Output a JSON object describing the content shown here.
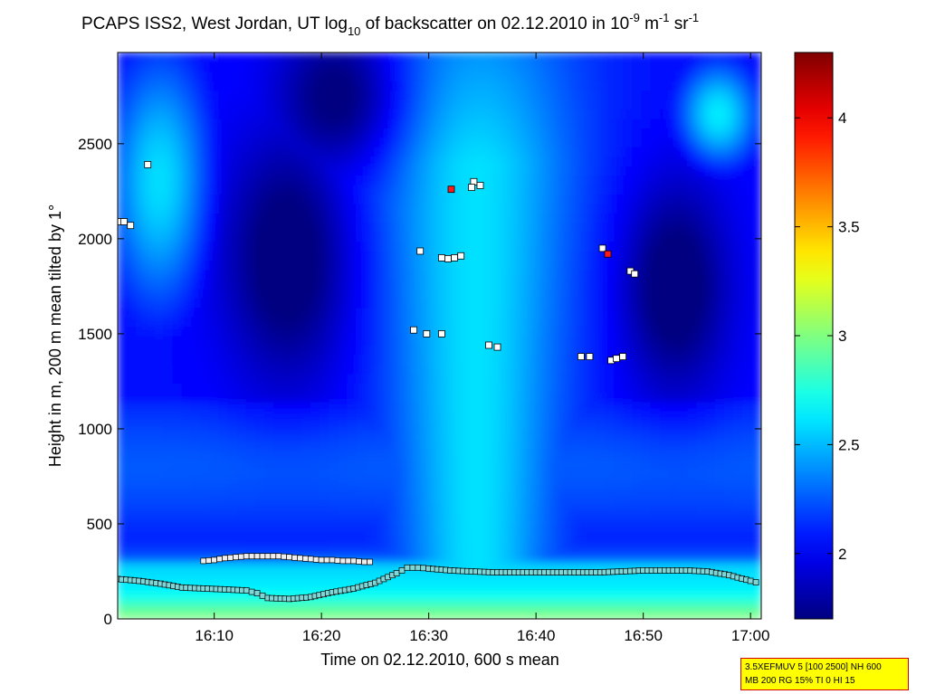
{
  "title": {
    "prefix": "PCAPS ISS2, West Jordan, UT log",
    "sub1": "10",
    "mid1": " of backscatter on 02.12.2010 in 10",
    "sup1": "-9",
    "mid2": " m",
    "sup2": "-1",
    "mid3": " sr",
    "sup3": "-1"
  },
  "info_box": {
    "line1": "3.5XEFMUV 5 [100 2500] NH 600",
    "line2": "MB 200 RG 15% TI 0 HI 15",
    "background": "#ffff00",
    "border": "#d40000"
  },
  "chart_data": {
    "type": "heatmap",
    "xlabel": "Time on 02.12.2010, 600 s mean",
    "ylabel": "Height in m, 200 m mean tilted by 1°",
    "xlim_minutes_after_1600": [
      1,
      61
    ],
    "ylim": [
      0,
      2980
    ],
    "x_ticks": [
      {
        "value": 10,
        "label": "16:10"
      },
      {
        "value": 20,
        "label": "16:20"
      },
      {
        "value": 30,
        "label": "16:30"
      },
      {
        "value": 40,
        "label": "16:40"
      },
      {
        "value": 50,
        "label": "16:50"
      },
      {
        "value": 60,
        "label": "17:00"
      }
    ],
    "y_ticks": [
      {
        "value": 0,
        "label": "0"
      },
      {
        "value": 500,
        "label": "500"
      },
      {
        "value": 1000,
        "label": "1000"
      },
      {
        "value": 1500,
        "label": "1500"
      },
      {
        "value": 2000,
        "label": "2000"
      },
      {
        "value": 2500,
        "label": "2500"
      }
    ],
    "colorbar": {
      "colormap": "jet",
      "range": [
        1.7,
        4.3
      ],
      "ticks": [
        {
          "value": 2,
          "label": "2"
        },
        {
          "value": 2.5,
          "label": "2.5"
        },
        {
          "value": 3,
          "label": "3"
        },
        {
          "value": 3.5,
          "label": "3.5"
        },
        {
          "value": 4,
          "label": "4"
        }
      ]
    },
    "lower_layer_line": {
      "x": [
        1,
        3,
        5,
        7,
        9,
        11,
        13,
        14,
        15,
        17,
        19,
        21,
        23,
        25,
        27,
        28,
        29,
        30,
        32,
        34,
        36,
        38,
        40,
        42,
        44,
        46,
        48,
        50,
        52,
        54,
        56,
        58,
        60,
        61
      ],
      "y": [
        210,
        200,
        185,
        165,
        160,
        155,
        150,
        135,
        110,
        105,
        115,
        140,
        160,
        190,
        240,
        270,
        270,
        265,
        255,
        250,
        245,
        245,
        245,
        245,
        245,
        245,
        250,
        255,
        255,
        255,
        250,
        230,
        200,
        185
      ]
    },
    "upper_layer_line": {
      "x": [
        9,
        10,
        11,
        12,
        13,
        14,
        15,
        16,
        17,
        18,
        19,
        20,
        21,
        22,
        23,
        24,
        25
      ],
      "y": [
        305,
        310,
        320,
        325,
        330,
        330,
        330,
        330,
        325,
        320,
        315,
        310,
        310,
        305,
        305,
        300,
        300
      ]
    },
    "markers_white": [
      {
        "x": 1.2,
        "y": 2090
      },
      {
        "x": 1.6,
        "y": 2090
      },
      {
        "x": 2.2,
        "y": 2070
      },
      {
        "x": 3.8,
        "y": 2390
      },
      {
        "x": 29.2,
        "y": 1935
      },
      {
        "x": 31.2,
        "y": 1900
      },
      {
        "x": 31.8,
        "y": 1895
      },
      {
        "x": 32.4,
        "y": 1900
      },
      {
        "x": 33.0,
        "y": 1910
      },
      {
        "x": 34.2,
        "y": 2300
      },
      {
        "x": 34.8,
        "y": 2280
      },
      {
        "x": 34.0,
        "y": 2270
      },
      {
        "x": 28.6,
        "y": 1520
      },
      {
        "x": 29.8,
        "y": 1500
      },
      {
        "x": 31.2,
        "y": 1500
      },
      {
        "x": 35.6,
        "y": 1440
      },
      {
        "x": 36.4,
        "y": 1430
      },
      {
        "x": 46.2,
        "y": 1950
      },
      {
        "x": 48.8,
        "y": 1830
      },
      {
        "x": 49.2,
        "y": 1815
      },
      {
        "x": 44.2,
        "y": 1380
      },
      {
        "x": 45.0,
        "y": 1380
      },
      {
        "x": 47.0,
        "y": 1360
      },
      {
        "x": 47.5,
        "y": 1370
      },
      {
        "x": 48.1,
        "y": 1380
      }
    ],
    "markers_red": [
      {
        "x": 32.1,
        "y": 2260
      },
      {
        "x": 46.7,
        "y": 1920
      }
    ]
  }
}
